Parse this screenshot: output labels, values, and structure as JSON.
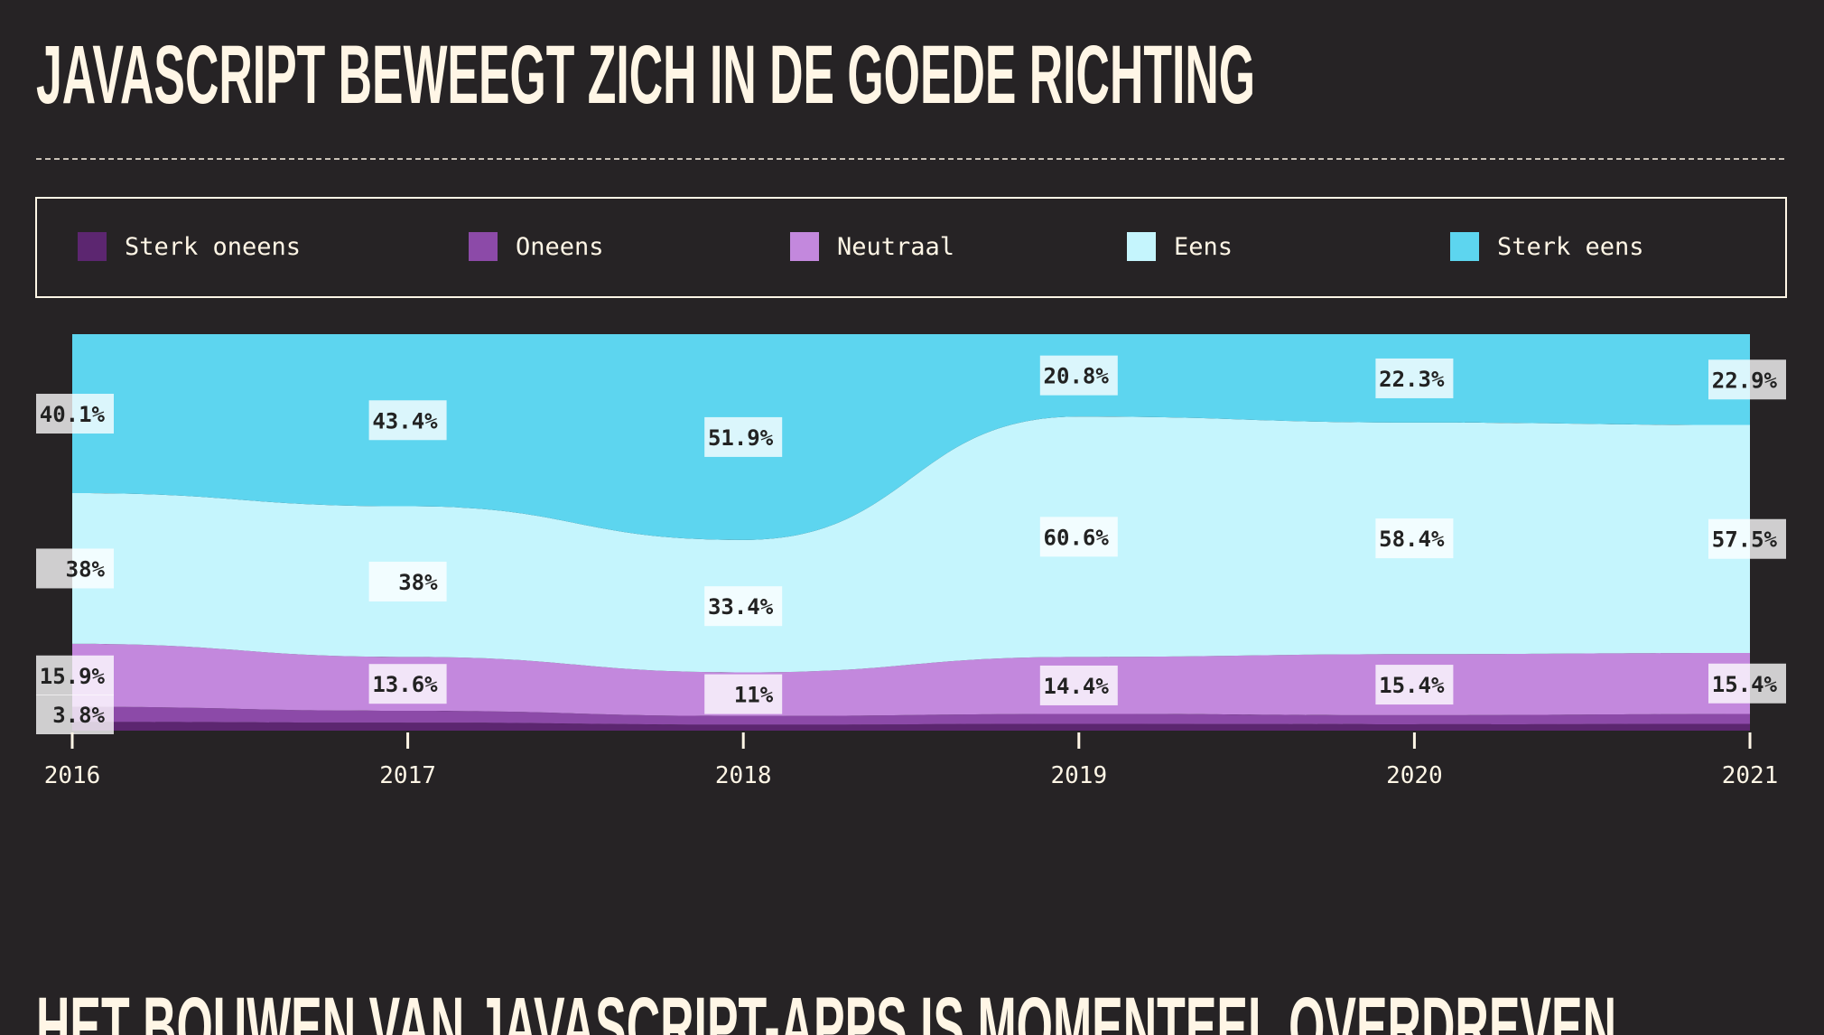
{
  "title": "JAVASCRIPT BEWEEGT ZICH IN DE GOEDE RICHTING",
  "next_title": "HET BOUWEN VAN JAVASCRIPT-APPS IS MOMENTEEL OVERDREVEN",
  "chart_data": {
    "type": "stacked_area",
    "categories": [
      "2016",
      "2017",
      "2018",
      "2019",
      "2020",
      "2021"
    ],
    "ylim": [
      0,
      100
    ],
    "series": [
      {
        "name": "Sterk oneens",
        "color": "#5c2670",
        "values": [
          2.2,
          2.0,
          1.5,
          1.7,
          1.6,
          1.7
        ],
        "value_labels": [
          null,
          null,
          null,
          null,
          null,
          null
        ]
      },
      {
        "name": "Oneens",
        "color": "#8c4aa8",
        "values": [
          3.8,
          3.0,
          2.2,
          2.5,
          2.3,
          2.5
        ],
        "value_labels": [
          "3.8%",
          null,
          null,
          null,
          null,
          null
        ]
      },
      {
        "name": "Neutraal",
        "color": "#c388dd",
        "values": [
          15.9,
          13.6,
          11,
          14.4,
          15.4,
          15.4
        ],
        "value_labels": [
          "15.9%",
          "13.6%",
          "11%",
          "14.4%",
          "15.4%",
          "15.4%"
        ]
      },
      {
        "name": "Eens",
        "color": "#c5f5fd",
        "values": [
          38,
          38,
          33.4,
          60.6,
          58.4,
          57.5
        ],
        "value_labels": [
          "38%",
          "38%",
          "33.4%",
          "60.6%",
          "58.4%",
          "57.5%"
        ]
      },
      {
        "name": "Sterk eens",
        "color": "#5dd5ef",
        "values": [
          40.1,
          43.4,
          51.9,
          20.8,
          22.3,
          22.9
        ],
        "value_labels": [
          "40.1%",
          "43.4%",
          "51.9%",
          "20.8%",
          "22.3%",
          "22.9%"
        ]
      }
    ]
  }
}
